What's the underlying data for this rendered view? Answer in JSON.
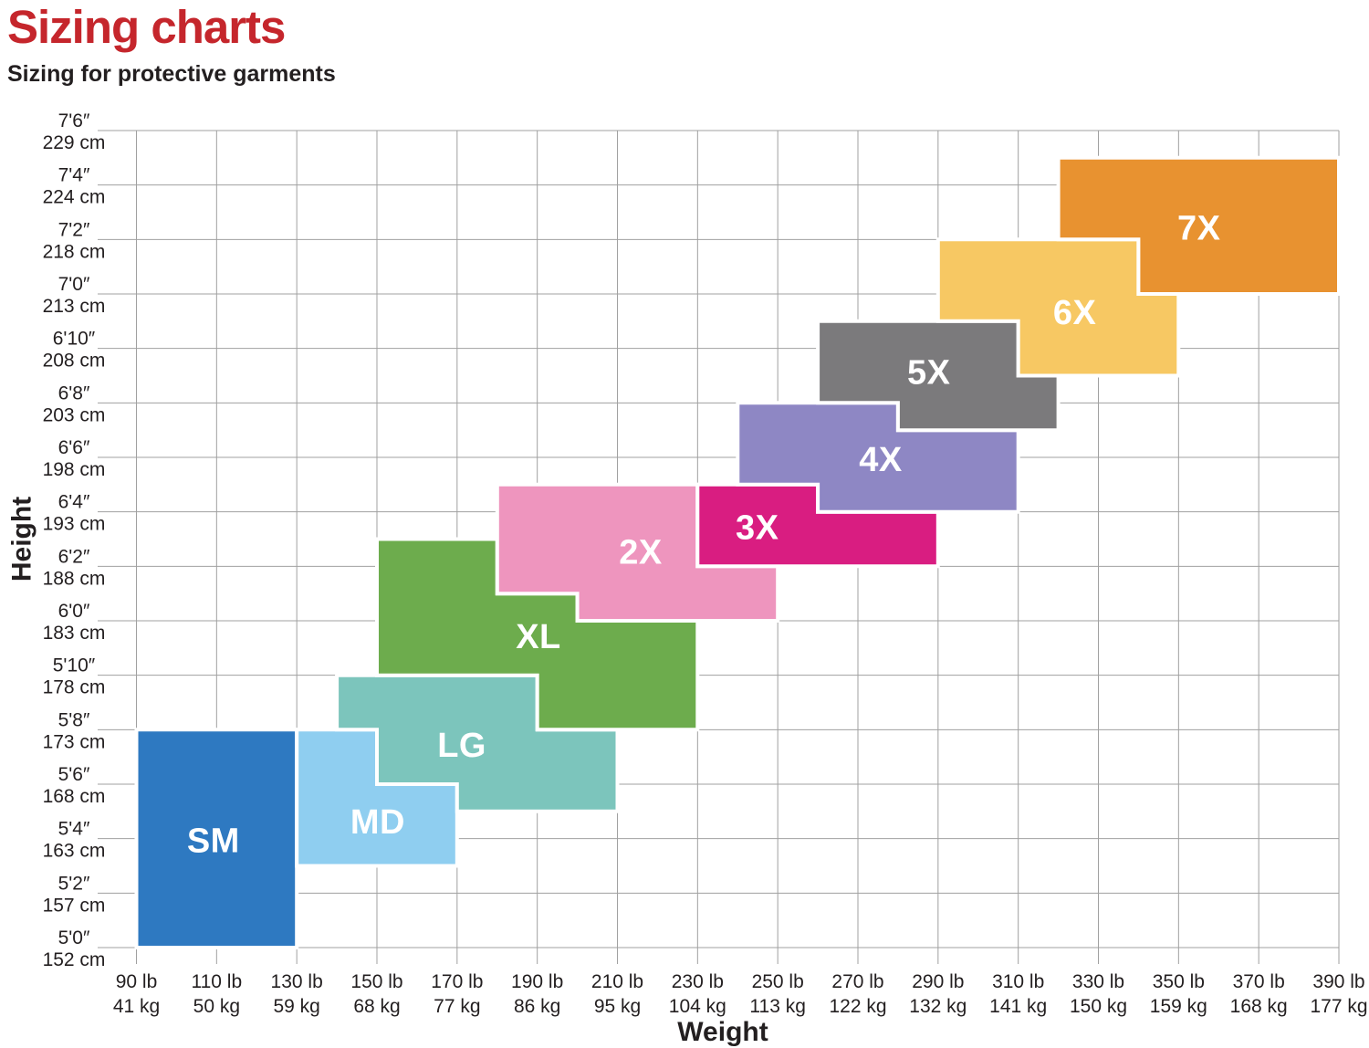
{
  "title": "Sizing charts",
  "subtitle": "Sizing for protective garments",
  "colors": {
    "title": "#c5262c",
    "text": "#231f20",
    "grid": "#a0a0a0",
    "block_label": "#ffffff",
    "background": "#ffffff"
  },
  "chart_data": {
    "type": "area",
    "subtype": "stepped-size-region-map",
    "title": "Sizing for protective garments",
    "xlabel": "Weight",
    "ylabel": "Height",
    "grid": true,
    "x_range_lb": [
      90,
      390
    ],
    "y_range_in": [
      60,
      90
    ],
    "x_ticks": [
      {
        "lb": 90,
        "label_lb": "90 lb",
        "label_kg": "41 kg"
      },
      {
        "lb": 110,
        "label_lb": "110 lb",
        "label_kg": "50 kg"
      },
      {
        "lb": 130,
        "label_lb": "130 lb",
        "label_kg": "59 kg"
      },
      {
        "lb": 150,
        "label_lb": "150 lb",
        "label_kg": "68 kg"
      },
      {
        "lb": 170,
        "label_lb": "170 lb",
        "label_kg": "77 kg"
      },
      {
        "lb": 190,
        "label_lb": "190 lb",
        "label_kg": "86 kg"
      },
      {
        "lb": 210,
        "label_lb": "210 lb",
        "label_kg": "95 kg"
      },
      {
        "lb": 230,
        "label_lb": "230 lb",
        "label_kg": "104 kg"
      },
      {
        "lb": 250,
        "label_lb": "250 lb",
        "label_kg": "113 kg"
      },
      {
        "lb": 270,
        "label_lb": "270 lb",
        "label_kg": "122 kg"
      },
      {
        "lb": 290,
        "label_lb": "290 lb",
        "label_kg": "132 kg"
      },
      {
        "lb": 310,
        "label_lb": "310 lb",
        "label_kg": "141 kg"
      },
      {
        "lb": 330,
        "label_lb": "330 lb",
        "label_kg": "150 kg"
      },
      {
        "lb": 350,
        "label_lb": "350 lb",
        "label_kg": "159 kg"
      },
      {
        "lb": 370,
        "label_lb": "370 lb",
        "label_kg": "168 kg"
      },
      {
        "lb": 390,
        "label_lb": "390 lb",
        "label_kg": "177 kg"
      }
    ],
    "y_ticks": [
      {
        "inches": 60,
        "label_ft": "5'0″",
        "label_cm": "152 cm"
      },
      {
        "inches": 62,
        "label_ft": "5'2″",
        "label_cm": "157 cm"
      },
      {
        "inches": 64,
        "label_ft": "5'4″",
        "label_cm": "163 cm"
      },
      {
        "inches": 66,
        "label_ft": "5'6″",
        "label_cm": "168 cm"
      },
      {
        "inches": 68,
        "label_ft": "5'8″",
        "label_cm": "173 cm"
      },
      {
        "inches": 70,
        "label_ft": "5'10″",
        "label_cm": "178 cm"
      },
      {
        "inches": 72,
        "label_ft": "6'0″",
        "label_cm": "183 cm"
      },
      {
        "inches": 74,
        "label_ft": "6'2″",
        "label_cm": "188 cm"
      },
      {
        "inches": 76,
        "label_ft": "6'4″",
        "label_cm": "193 cm"
      },
      {
        "inches": 78,
        "label_ft": "6'6″",
        "label_cm": "198 cm"
      },
      {
        "inches": 80,
        "label_ft": "6'8″",
        "label_cm": "203 cm"
      },
      {
        "inches": 82,
        "label_ft": "6'10″",
        "label_cm": "208 cm"
      },
      {
        "inches": 84,
        "label_ft": "7'0″",
        "label_cm": "213 cm"
      },
      {
        "inches": 86,
        "label_ft": "7'2″",
        "label_cm": "218 cm"
      },
      {
        "inches": 88,
        "label_ft": "7'4″",
        "label_cm": "224 cm"
      },
      {
        "inches": 90,
        "label_ft": "7'6″",
        "label_cm": "229 cm"
      }
    ],
    "sizes": [
      {
        "label": "SM",
        "color": "#2e79c1",
        "weight_range_lb": [
          90,
          130
        ],
        "height_range_in": [
          60,
          68
        ],
        "polygon_lb_in": [
          [
            90,
            68
          ],
          [
            130,
            68
          ],
          [
            130,
            60
          ],
          [
            90,
            60
          ]
        ],
        "label_at": [
          109.2,
          63.9
        ]
      },
      {
        "label": "MD",
        "color": "#8fcef0",
        "weight_range_lb": [
          130,
          170
        ],
        "height_range_in": [
          63,
          68
        ],
        "polygon_lb_in": [
          [
            130,
            68
          ],
          [
            150,
            68
          ],
          [
            150,
            66
          ],
          [
            170,
            66
          ],
          [
            170,
            63
          ],
          [
            130,
            63
          ]
        ],
        "label_at": [
          150.2,
          64.6
        ]
      },
      {
        "label": "LG",
        "color": "#7cc5bc",
        "weight_range_lb": [
          140,
          210
        ],
        "height_range_in": [
          65,
          70
        ],
        "polygon_lb_in": [
          [
            140,
            70
          ],
          [
            190,
            70
          ],
          [
            190,
            68
          ],
          [
            210,
            68
          ],
          [
            210,
            65
          ],
          [
            170,
            65
          ],
          [
            170,
            66
          ],
          [
            150,
            66
          ],
          [
            150,
            68
          ],
          [
            140,
            68
          ]
        ],
        "label_at": [
          171.2,
          67.4
        ]
      },
      {
        "label": "XL",
        "color": "#6dac4d",
        "weight_range_lb": [
          150,
          230
        ],
        "height_range_in": [
          68,
          75
        ],
        "polygon_lb_in": [
          [
            150,
            75
          ],
          [
            180,
            75
          ],
          [
            180,
            73
          ],
          [
            200,
            73
          ],
          [
            200,
            72
          ],
          [
            230,
            72
          ],
          [
            230,
            68
          ],
          [
            190,
            68
          ],
          [
            190,
            70
          ],
          [
            150,
            70
          ]
        ],
        "label_at": [
          190.3,
          71.4
        ]
      },
      {
        "label": "2X",
        "color": "#ee95be",
        "weight_range_lb": [
          180,
          250
        ],
        "height_range_in": [
          72,
          77
        ],
        "polygon_lb_in": [
          [
            180,
            77
          ],
          [
            230,
            77
          ],
          [
            230,
            74
          ],
          [
            250,
            74
          ],
          [
            250,
            72
          ],
          [
            200,
            72
          ],
          [
            200,
            73
          ],
          [
            180,
            73
          ]
        ],
        "label_at": [
          215.8,
          74.5
        ]
      },
      {
        "label": "3X",
        "color": "#d91d81",
        "weight_range_lb": [
          230,
          290
        ],
        "height_range_in": [
          74,
          77
        ],
        "polygon_lb_in": [
          [
            230,
            77
          ],
          [
            260,
            77
          ],
          [
            260,
            76
          ],
          [
            290,
            76
          ],
          [
            290,
            74
          ],
          [
            230,
            74
          ]
        ],
        "label_at": [
          244.9,
          75.4
        ]
      },
      {
        "label": "4X",
        "color": "#8e87c4",
        "weight_range_lb": [
          240,
          310
        ],
        "height_range_in": [
          76,
          80
        ],
        "polygon_lb_in": [
          [
            240,
            80
          ],
          [
            280,
            80
          ],
          [
            280,
            79
          ],
          [
            310,
            79
          ],
          [
            310,
            76
          ],
          [
            260,
            76
          ],
          [
            260,
            77
          ],
          [
            240,
            77
          ]
        ],
        "label_at": [
          275.7,
          77.9
        ]
      },
      {
        "label": "5X",
        "color": "#7b7a7c",
        "weight_range_lb": [
          260,
          320
        ],
        "height_range_in": [
          79,
          83
        ],
        "polygon_lb_in": [
          [
            260,
            83
          ],
          [
            310,
            83
          ],
          [
            310,
            81
          ],
          [
            320,
            81
          ],
          [
            320,
            79
          ],
          [
            280,
            79
          ],
          [
            280,
            80
          ],
          [
            260,
            80
          ]
        ],
        "label_at": [
          287.7,
          81.1
        ]
      },
      {
        "label": "6X",
        "color": "#f7c863",
        "weight_range_lb": [
          290,
          350
        ],
        "height_range_in": [
          81,
          86
        ],
        "polygon_lb_in": [
          [
            290,
            86
          ],
          [
            340,
            86
          ],
          [
            340,
            84
          ],
          [
            350,
            84
          ],
          [
            350,
            81
          ],
          [
            310,
            81
          ],
          [
            310,
            83
          ],
          [
            290,
            83
          ]
        ],
        "label_at": [
          324.1,
          83.3
        ]
      },
      {
        "label": "7X",
        "color": "#e89230",
        "weight_range_lb": [
          320,
          390
        ],
        "height_range_in": [
          84,
          89
        ],
        "polygon_lb_in": [
          [
            320,
            89
          ],
          [
            390,
            89
          ],
          [
            390,
            84
          ],
          [
            340,
            84
          ],
          [
            340,
            86
          ],
          [
            320,
            86
          ]
        ],
        "label_at": [
          355.1,
          86.4
        ]
      }
    ]
  }
}
